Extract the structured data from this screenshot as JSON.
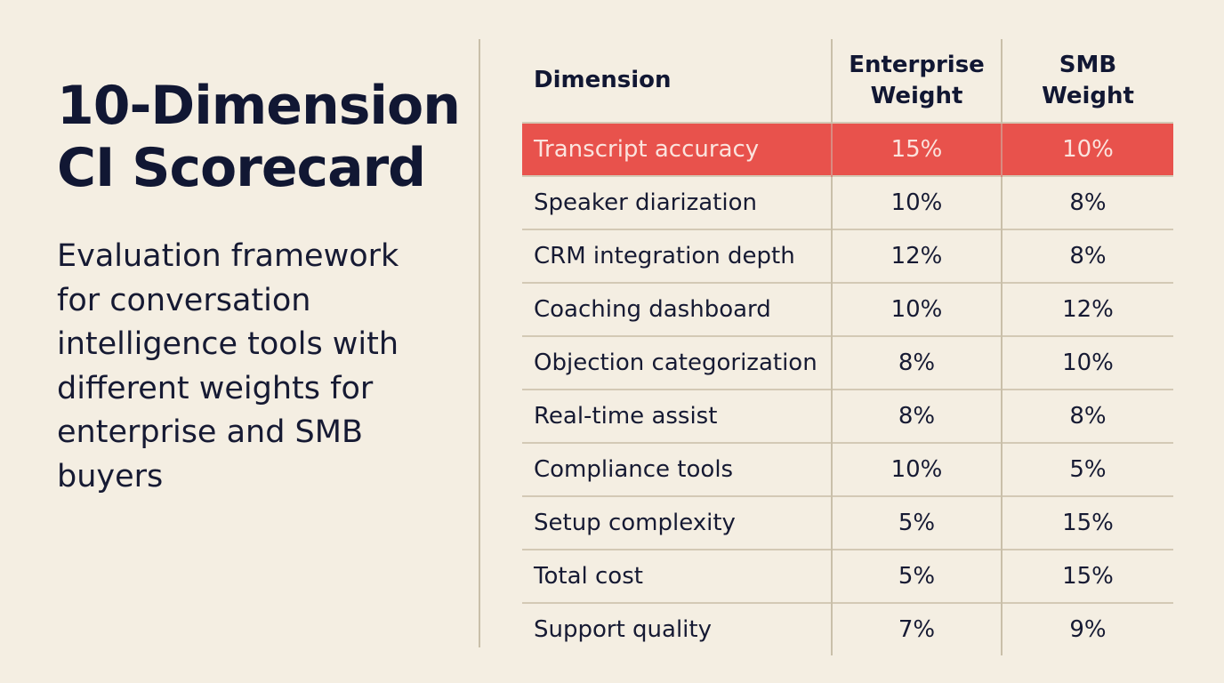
{
  "title": {
    "line1": "10-Dimension",
    "line2": "CI Scorecard"
  },
  "subtitle": "Evaluation framework for conversation intelligence tools with different weights for enterprise and SMB buyers",
  "table": {
    "headers": {
      "dimension": "Dimension",
      "enterprise_line1": "Enterprise",
      "enterprise_line2": "Weight",
      "smb_line1": "SMB",
      "smb_line2": "Weight"
    },
    "highlight_color": "#e8524c",
    "rows": [
      {
        "dimension": "Transcript accuracy",
        "enterprise": "15%",
        "smb": "10%",
        "highlighted": true
      },
      {
        "dimension": "Speaker diarization",
        "enterprise": "10%",
        "smb": "8%"
      },
      {
        "dimension": "CRM integration depth",
        "enterprise": "12%",
        "smb": "8%"
      },
      {
        "dimension": "Coaching dashboard",
        "enterprise": "10%",
        "smb": "12%"
      },
      {
        "dimension": "Objection categorization",
        "enterprise": "8%",
        "smb": "10%"
      },
      {
        "dimension": "Real-time assist",
        "enterprise": "8%",
        "smb": "8%"
      },
      {
        "dimension": "Compliance tools",
        "enterprise": "10%",
        "smb": "5%"
      },
      {
        "dimension": "Setup complexity",
        "enterprise": "5%",
        "smb": "15%"
      },
      {
        "dimension": "Total cost",
        "enterprise": "5%",
        "smb": "15%"
      },
      {
        "dimension": "Support quality",
        "enterprise": "7%",
        "smb": "9%"
      }
    ]
  }
}
